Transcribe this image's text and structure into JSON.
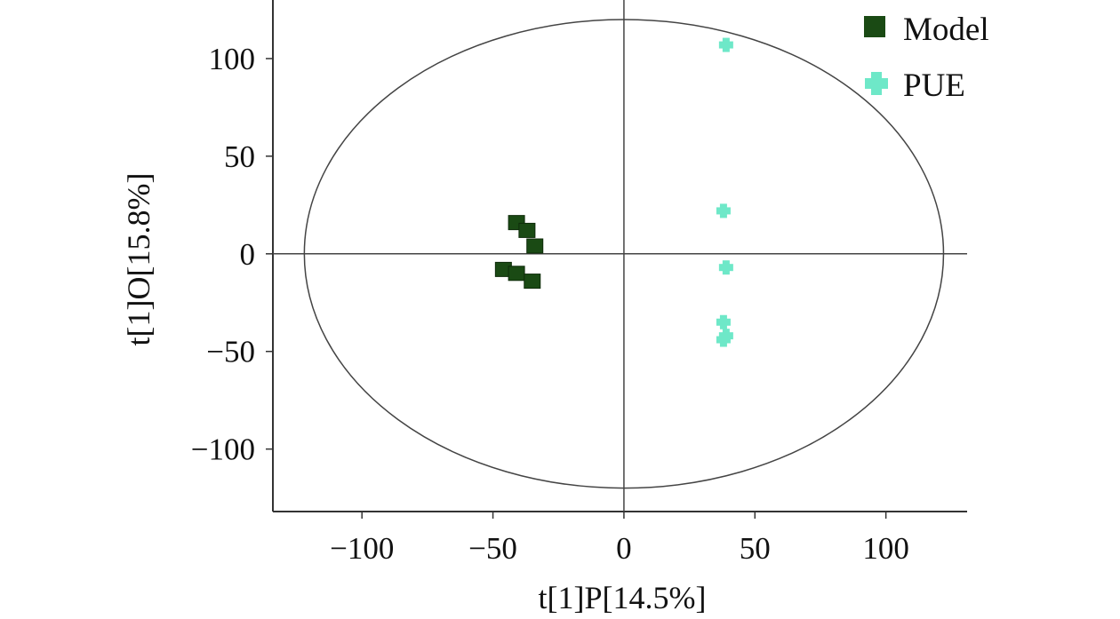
{
  "chart_data": {
    "type": "scatter",
    "title": "",
    "xlabel": "t[1]P[14.5%]",
    "ylabel": "t[1]O[15.8%]",
    "xlim": [
      -134,
      131
    ],
    "ylim": [
      -132,
      130
    ],
    "xticks": [
      -100,
      -50,
      0,
      50,
      100
    ],
    "yticks": [
      -100,
      -50,
      0,
      50,
      100
    ],
    "xtick_labels": [
      "−100",
      "−50",
      "0",
      "50",
      "100"
    ],
    "ytick_labels": [
      "−100",
      "−50",
      "0",
      "50",
      "100"
    ],
    "grid": false,
    "reference_lines": {
      "x": 0,
      "y": 0
    },
    "ellipse": {
      "center": [
        0,
        0
      ],
      "x_radius": 122,
      "y_radius": 120
    },
    "legend": {
      "placement": "top-right"
    },
    "series": [
      {
        "name": "Model",
        "color": "#1a4a14",
        "marker": "square",
        "points": [
          [
            -41,
            16
          ],
          [
            -37,
            12
          ],
          [
            -34,
            4
          ],
          [
            -46,
            -8
          ],
          [
            -41,
            -10
          ],
          [
            -35,
            -14
          ]
        ]
      },
      {
        "name": "PUE",
        "color": "#6ee8c8",
        "marker": "plus",
        "points": [
          [
            39,
            107
          ],
          [
            38,
            22
          ],
          [
            39,
            -7
          ],
          [
            38,
            -35
          ],
          [
            39,
            -42
          ],
          [
            38,
            -44
          ]
        ]
      }
    ]
  }
}
